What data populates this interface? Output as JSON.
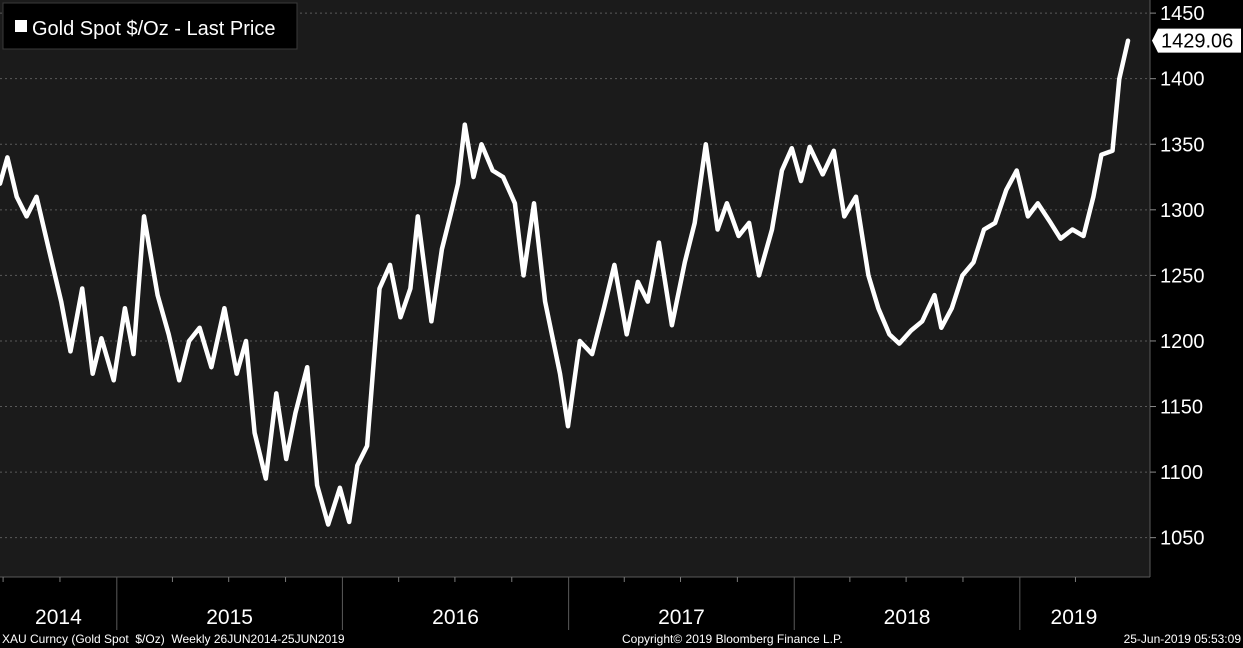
{
  "chart_data": {
    "type": "line",
    "legend": "Gold Spot $/Oz - Last Price",
    "legend_position": "top-left",
    "last_value_label": "1429.06",
    "ylim": [
      1020,
      1460
    ],
    "yticks": [
      1050,
      1100,
      1150,
      1200,
      1250,
      1300,
      1350,
      1400,
      1450
    ],
    "ytick_labels": [
      "1050",
      "1100",
      "1150",
      "1200",
      "1250",
      "1300",
      "1350",
      "1400",
      "1450"
    ],
    "y_axis_side": "right",
    "x_start": "2014-06-26",
    "x_end": "2019-06-25",
    "year_labels": [
      "2014",
      "2015",
      "2016",
      "2017",
      "2018",
      "2019"
    ],
    "grid": "horizontal dashed",
    "series": [
      {
        "name": "Gold Spot $/Oz - Last Price",
        "color": "#ffffff",
        "x": [
          "2014-06-26",
          "2014-07-08",
          "2014-07-23",
          "2014-08-08",
          "2014-08-24",
          "2014-09-13",
          "2014-10-03",
          "2014-10-18",
          "2014-11-06",
          "2014-11-23",
          "2014-12-07",
          "2014-12-27",
          "2015-01-14",
          "2015-01-28",
          "2015-02-14",
          "2015-03-08",
          "2015-03-26",
          "2015-04-12",
          "2015-04-28",
          "2015-05-15",
          "2015-06-03",
          "2015-06-24",
          "2015-07-14",
          "2015-07-29",
          "2015-08-12",
          "2015-08-30",
          "2015-09-16",
          "2015-10-02",
          "2015-10-17",
          "2015-11-05",
          "2015-11-21",
          "2015-12-09",
          "2015-12-28",
          "2016-01-12",
          "2016-01-25",
          "2016-02-10",
          "2016-03-01",
          "2016-03-18",
          "2016-04-04",
          "2016-04-20",
          "2016-05-02",
          "2016-05-24",
          "2016-06-10",
          "2016-06-26",
          "2016-07-06",
          "2016-07-17",
          "2016-07-31",
          "2016-08-13",
          "2016-08-31",
          "2016-09-17",
          "2016-10-06",
          "2016-10-20",
          "2016-11-06",
          "2016-11-24",
          "2016-12-18",
          "2016-12-31",
          "2017-01-19",
          "2017-02-08",
          "2017-02-27",
          "2017-03-16",
          "2017-04-05",
          "2017-04-23",
          "2017-05-09",
          "2017-05-27",
          "2017-06-17",
          "2017-07-08",
          "2017-07-24",
          "2017-08-11",
          "2017-08-30",
          "2017-09-14",
          "2017-10-03",
          "2017-10-20",
          "2017-11-05",
          "2017-11-26",
          "2017-12-12",
          "2017-12-28",
          "2018-01-12",
          "2018-01-26",
          "2018-02-16",
          "2018-03-06",
          "2018-03-23",
          "2018-04-11",
          "2018-05-01",
          "2018-05-17",
          "2018-06-04",
          "2018-06-20",
          "2018-07-09",
          "2018-07-27",
          "2018-08-16",
          "2018-08-27",
          "2018-09-13",
          "2018-09-30",
          "2018-10-18",
          "2018-11-04",
          "2018-11-22",
          "2018-12-10",
          "2018-12-27",
          "2019-01-14",
          "2019-01-30",
          "2019-02-20",
          "2019-03-08",
          "2019-03-27",
          "2019-04-14",
          "2019-04-30",
          "2019-05-13",
          "2019-05-31",
          "2019-06-11",
          "2019-06-25"
        ],
        "values": [
          1320,
          1340,
          1310,
          1295,
          1310,
          1270,
          1230,
          1192,
          1240,
          1175,
          1202,
          1170,
          1225,
          1190,
          1295,
          1235,
          1205,
          1170,
          1200,
          1210,
          1180,
          1225,
          1175,
          1200,
          1130,
          1095,
          1160,
          1110,
          1145,
          1180,
          1090,
          1060,
          1088,
          1062,
          1105,
          1120,
          1240,
          1258,
          1218,
          1240,
          1295,
          1215,
          1270,
          1300,
          1320,
          1365,
          1325,
          1350,
          1330,
          1325,
          1305,
          1250,
          1305,
          1230,
          1175,
          1135,
          1200,
          1190,
          1225,
          1258,
          1205,
          1245,
          1230,
          1275,
          1212,
          1260,
          1290,
          1350,
          1285,
          1305,
          1280,
          1290,
          1250,
          1285,
          1330,
          1347,
          1322,
          1348,
          1327,
          1345,
          1295,
          1310,
          1250,
          1225,
          1205,
          1198,
          1208,
          1215,
          1235,
          1210,
          1225,
          1250,
          1260,
          1285,
          1290,
          1315,
          1330,
          1295,
          1305,
          1290,
          1278,
          1285,
          1280,
          1310,
          1342,
          1345,
          1400,
          1429
        ]
      }
    ]
  },
  "footer": {
    "left": "XAU Curncy (Gold Spot  $/Oz)  Weekly 26JUN2014-25JUN2019",
    "center": "Copyright© 2019 Bloomberg Finance L.P.",
    "right": "25-Jun-2019 05:53:09"
  }
}
